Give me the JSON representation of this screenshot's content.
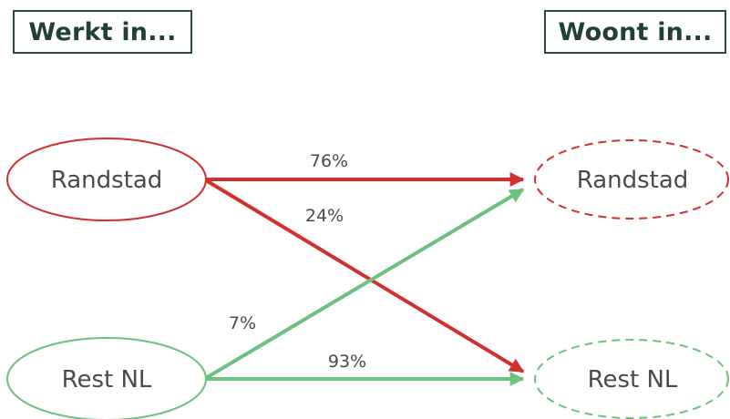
{
  "headers": {
    "left": "Werkt in...",
    "right": "Woont in..."
  },
  "nodes": {
    "work_randstad": "Randstad",
    "work_rest": "Rest NL",
    "live_randstad": "Randstad",
    "live_rest": "Rest NL"
  },
  "flows": {
    "randstad_to_randstad": "76%",
    "randstad_to_rest": "24%",
    "rest_to_randstad": "7%",
    "rest_to_rest": "93%"
  },
  "colors": {
    "randstad": "#d22f2f",
    "rest": "#6cc17e",
    "header_border": "#2b4a43",
    "header_text": "#22403a"
  }
}
